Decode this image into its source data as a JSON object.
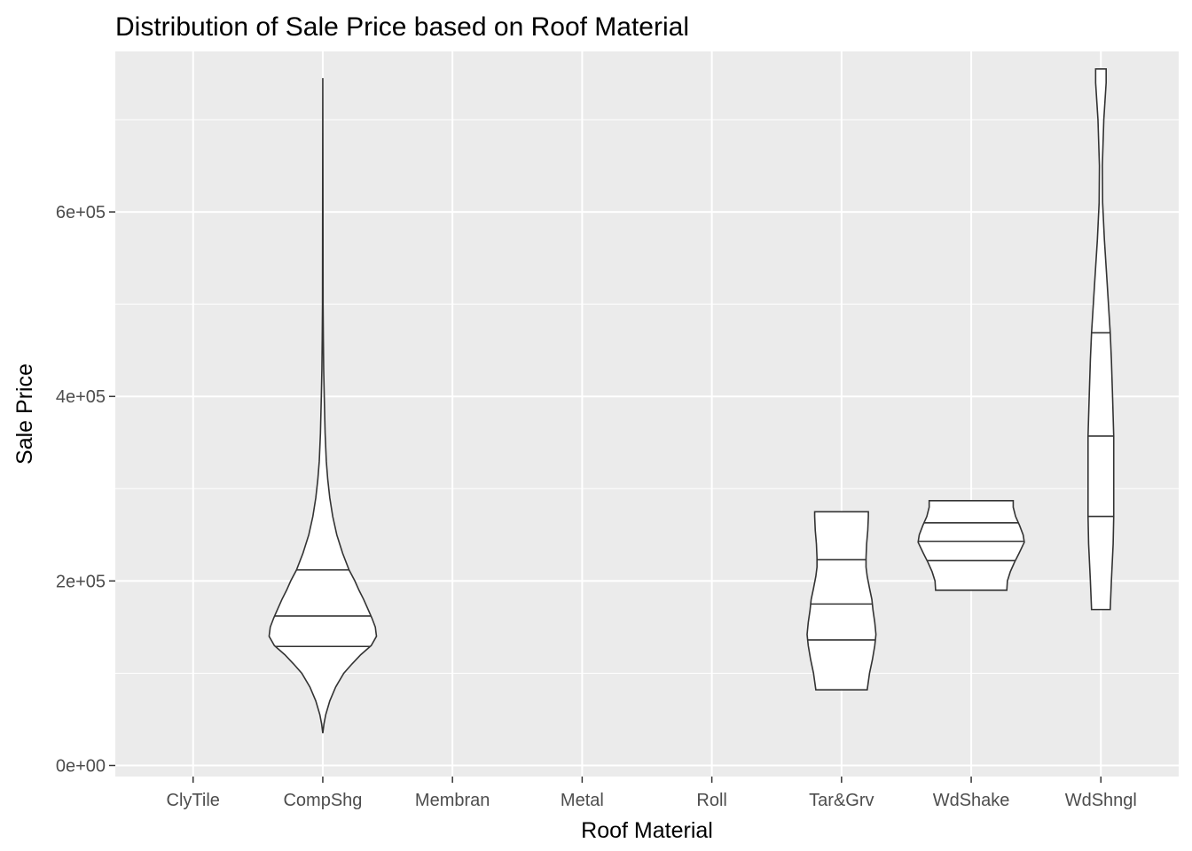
{
  "chart_data": {
    "type": "violin",
    "title": "Distribution of Sale Price based on Roof Material",
    "xlabel": "Roof Material",
    "ylabel": "Sale Price",
    "categories": [
      "ClyTile",
      "CompShg",
      "Membran",
      "Metal",
      "Roll",
      "Tar&Grv",
      "WdShake",
      "WdShngl"
    ],
    "ylim": [
      -12000,
      774000
    ],
    "yticks": [
      0,
      200000,
      400000,
      600000
    ],
    "ytick_labels": [
      "0e+00",
      "2e+05",
      "4e+05",
      "6e+05"
    ],
    "grid": true,
    "draw_quantiles": [
      0.25,
      0.5,
      0.75
    ],
    "violins": [
      {
        "category": "CompShg",
        "quantiles": [
          129000,
          162000,
          212000
        ],
        "profile": [
          [
            35000,
            0.0
          ],
          [
            45000,
            0.02
          ],
          [
            55000,
            0.05
          ],
          [
            70000,
            0.12
          ],
          [
            85000,
            0.22
          ],
          [
            100000,
            0.36
          ],
          [
            110000,
            0.5
          ],
          [
            120000,
            0.65
          ],
          [
            130000,
            0.83
          ],
          [
            140000,
            0.92
          ],
          [
            150000,
            0.9
          ],
          [
            160000,
            0.84
          ],
          [
            170000,
            0.77
          ],
          [
            180000,
            0.7
          ],
          [
            190000,
            0.62
          ],
          [
            200000,
            0.55
          ],
          [
            212000,
            0.45
          ],
          [
            230000,
            0.34
          ],
          [
            250000,
            0.24
          ],
          [
            270000,
            0.17
          ],
          [
            290000,
            0.12
          ],
          [
            310000,
            0.085
          ],
          [
            330000,
            0.06
          ],
          [
            360000,
            0.04
          ],
          [
            400000,
            0.025
          ],
          [
            430000,
            0.015
          ],
          [
            460000,
            0.01
          ],
          [
            500000,
            0.005
          ],
          [
            600000,
            0.003
          ],
          [
            745000,
            0.0
          ]
        ]
      },
      {
        "category": "Tar&Grv",
        "quantiles": [
          136000,
          175000,
          223000
        ],
        "profile": [
          [
            82000,
            0.44
          ],
          [
            100000,
            0.48
          ],
          [
            115000,
            0.53
          ],
          [
            130000,
            0.57
          ],
          [
            142000,
            0.59
          ],
          [
            155000,
            0.57
          ],
          [
            168000,
            0.54
          ],
          [
            180000,
            0.52
          ],
          [
            192000,
            0.48
          ],
          [
            205000,
            0.44
          ],
          [
            215000,
            0.42
          ],
          [
            225000,
            0.42
          ],
          [
            240000,
            0.43
          ],
          [
            255000,
            0.45
          ],
          [
            270000,
            0.46
          ],
          [
            275000,
            0.46
          ]
        ]
      },
      {
        "category": "WdShake",
        "quantiles": [
          222000,
          243000,
          263000
        ],
        "profile": [
          [
            190000,
            0.61
          ],
          [
            200000,
            0.62
          ],
          [
            210000,
            0.67
          ],
          [
            220000,
            0.74
          ],
          [
            230000,
            0.82
          ],
          [
            242000,
            0.91
          ],
          [
            250000,
            0.89
          ],
          [
            260000,
            0.83
          ],
          [
            270000,
            0.76
          ],
          [
            280000,
            0.72
          ],
          [
            287000,
            0.72
          ]
        ]
      },
      {
        "category": "WdShngl",
        "quantiles": [
          270000,
          357000,
          469000
        ],
        "profile": [
          [
            169000,
            0.16
          ],
          [
            200000,
            0.18
          ],
          [
            240000,
            0.21
          ],
          [
            270000,
            0.22
          ],
          [
            300000,
            0.22
          ],
          [
            357000,
            0.22
          ],
          [
            400000,
            0.2
          ],
          [
            440000,
            0.18
          ],
          [
            469000,
            0.16
          ],
          [
            520000,
            0.11
          ],
          [
            570000,
            0.06
          ],
          [
            610000,
            0.03
          ],
          [
            650000,
            0.025
          ],
          [
            700000,
            0.05
          ],
          [
            740000,
            0.09
          ],
          [
            755000,
            0.09
          ]
        ]
      }
    ]
  }
}
